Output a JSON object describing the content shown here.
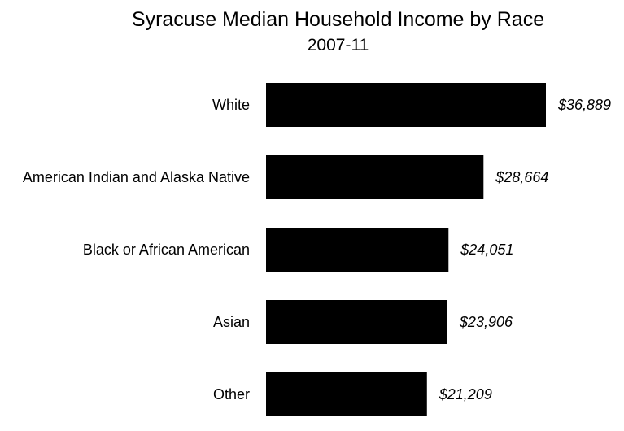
{
  "chart_data": {
    "type": "bar",
    "orientation": "horizontal",
    "title": "Syracuse Median Household Income by Race",
    "subtitle": "2007-11",
    "categories": [
      "White",
      "American Indian and Alaska Native",
      "Black or African American",
      "Asian",
      "Other"
    ],
    "values": [
      36889,
      28664,
      24051,
      23906,
      21209
    ],
    "value_labels": [
      "$36,889",
      "$28,664",
      "$24,051",
      "$23,906",
      "$21,209"
    ],
    "bar_color": "#000000",
    "grid": false,
    "legend": "none",
    "xlim": [
      0,
      36889
    ]
  }
}
